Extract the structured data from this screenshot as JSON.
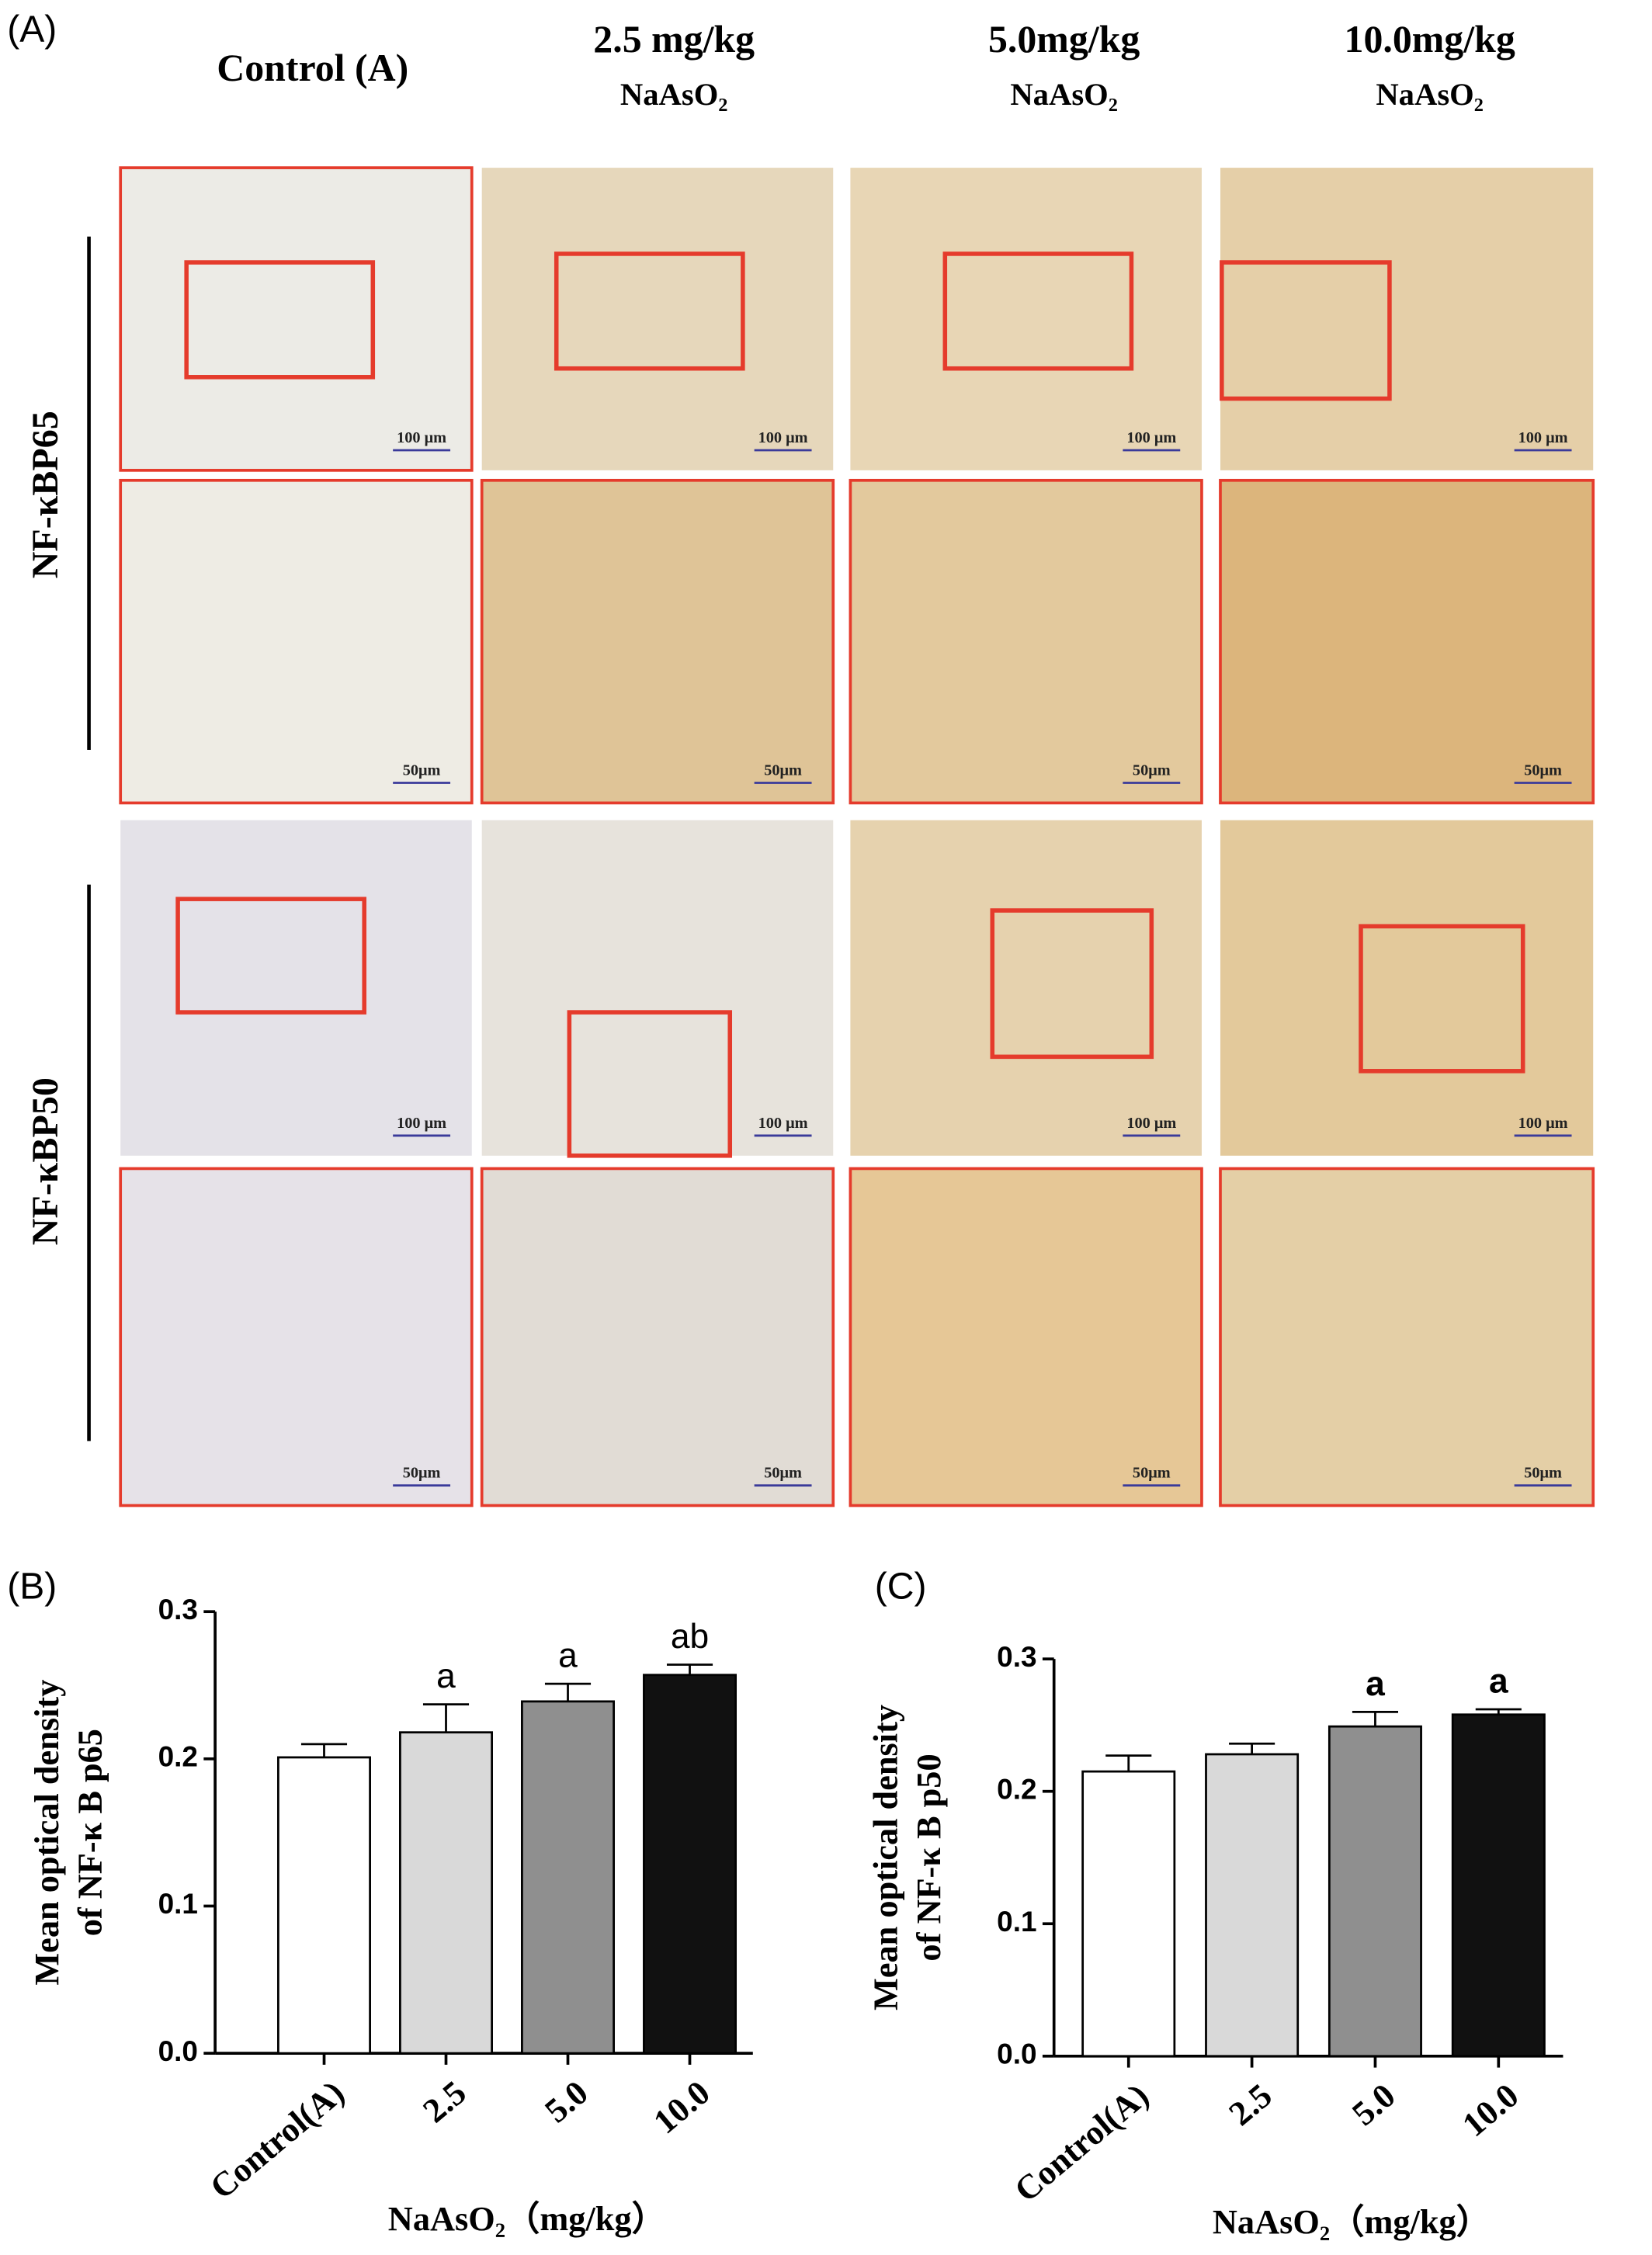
{
  "panel_a": {
    "label": "(A)",
    "columns": [
      {
        "dose": "Control (A)"
      },
      {
        "dose": "2.5 mg/kg",
        "compound": "NaAsO₂"
      },
      {
        "dose": "5.0mg/kg",
        "compound": "NaAsO₂"
      },
      {
        "dose": "10.0mg/kg",
        "compound": "NaAsO₂"
      }
    ],
    "rows": [
      "NF-κBP65",
      "NF-κBP50"
    ],
    "scale_labels": [
      "100 μm",
      "50μm"
    ]
  },
  "chart_data": [
    {
      "type": "bar",
      "panel": "(B)",
      "ylabel": [
        "Mean optical density",
        "of NF-κ B p65"
      ],
      "xlabel": "NaAsO₂（mg/kg）",
      "categories": [
        "Control(A)",
        "2.5",
        "5.0",
        "10.0"
      ],
      "values": [
        0.201,
        0.218,
        0.239,
        0.257
      ],
      "errors": [
        0.009,
        0.019,
        0.012,
        0.007
      ],
      "annotations": [
        null,
        "a",
        "a",
        "ab"
      ],
      "annotation_bold": false,
      "colors": [
        "#ffffff",
        "#d9d9d9",
        "#8f8f8f",
        "#111111"
      ],
      "ylim": [
        0,
        0.3
      ],
      "yticks": [
        {
          "value": 0,
          "label": "0.0"
        },
        0.1,
        0.2,
        0.3
      ]
    },
    {
      "type": "bar",
      "panel": "(C)",
      "ylabel": [
        "Mean optical density",
        "of NF-κ B p50"
      ],
      "xlabel": "NaAsO₂（mg/kg）",
      "categories": [
        "Control(A)",
        "2.5",
        "5.0",
        "10.0"
      ],
      "values": [
        0.215,
        0.228,
        0.249,
        0.258
      ],
      "errors": [
        0.012,
        0.008,
        0.011,
        0.004
      ],
      "annotations": [
        null,
        null,
        "a",
        "a"
      ],
      "annotation_bold": true,
      "colors": [
        "#ffffff",
        "#d9d9d9",
        "#8f8f8f",
        "#111111"
      ],
      "ylim": [
        0,
        0.3
      ],
      "yticks": [
        {
          "value": 0,
          "label": "0.0"
        },
        0.1,
        0.2,
        0.3
      ]
    }
  ]
}
